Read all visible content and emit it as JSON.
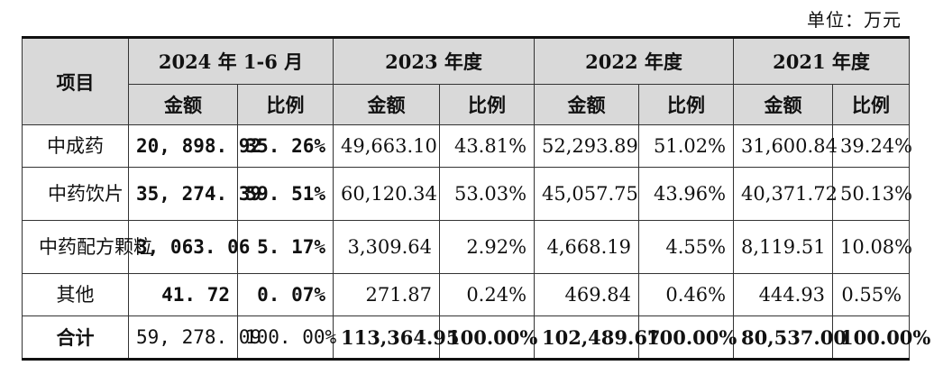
{
  "unit_label": "单位：万元",
  "header": {
    "item": "项目",
    "periods": [
      "2024 年 1-6 月",
      "2023 年度",
      "2022 年度",
      "2021 年度"
    ],
    "amount": "金额",
    "ratio": "比例"
  },
  "rows": [
    {
      "item": "中成药",
      "cells": [
        "20, 898. 92",
        "35. 26%",
        "49,663.10",
        "43.81%",
        "52,293.89",
        "51.02%",
        "31,600.84",
        "39.24%"
      ]
    },
    {
      "item": "中药饮片",
      "cells": [
        "35, 274. 39",
        "59. 51%",
        "60,120.34",
        "53.03%",
        "45,057.75",
        "43.96%",
        "40,371.72",
        "50.13%"
      ]
    },
    {
      "item": "中药配方颗粒",
      "cells": [
        "3, 063. 06",
        "5. 17%",
        "3,309.64",
        "2.92%",
        "4,668.19",
        "4.55%",
        "8,119.51",
        "10.08%"
      ]
    },
    {
      "item": "其他",
      "cells": [
        "41. 72",
        "0. 07%",
        "271.87",
        "0.24%",
        "469.84",
        "0.46%",
        "444.93",
        "0.55%"
      ]
    },
    {
      "item": "合计",
      "cells": [
        "59, 278. 09",
        "100. 00%",
        "113,364.95",
        "100.00%",
        "102,489.67",
        "100.00%",
        "80,537.00",
        "100.00%"
      ]
    }
  ]
}
